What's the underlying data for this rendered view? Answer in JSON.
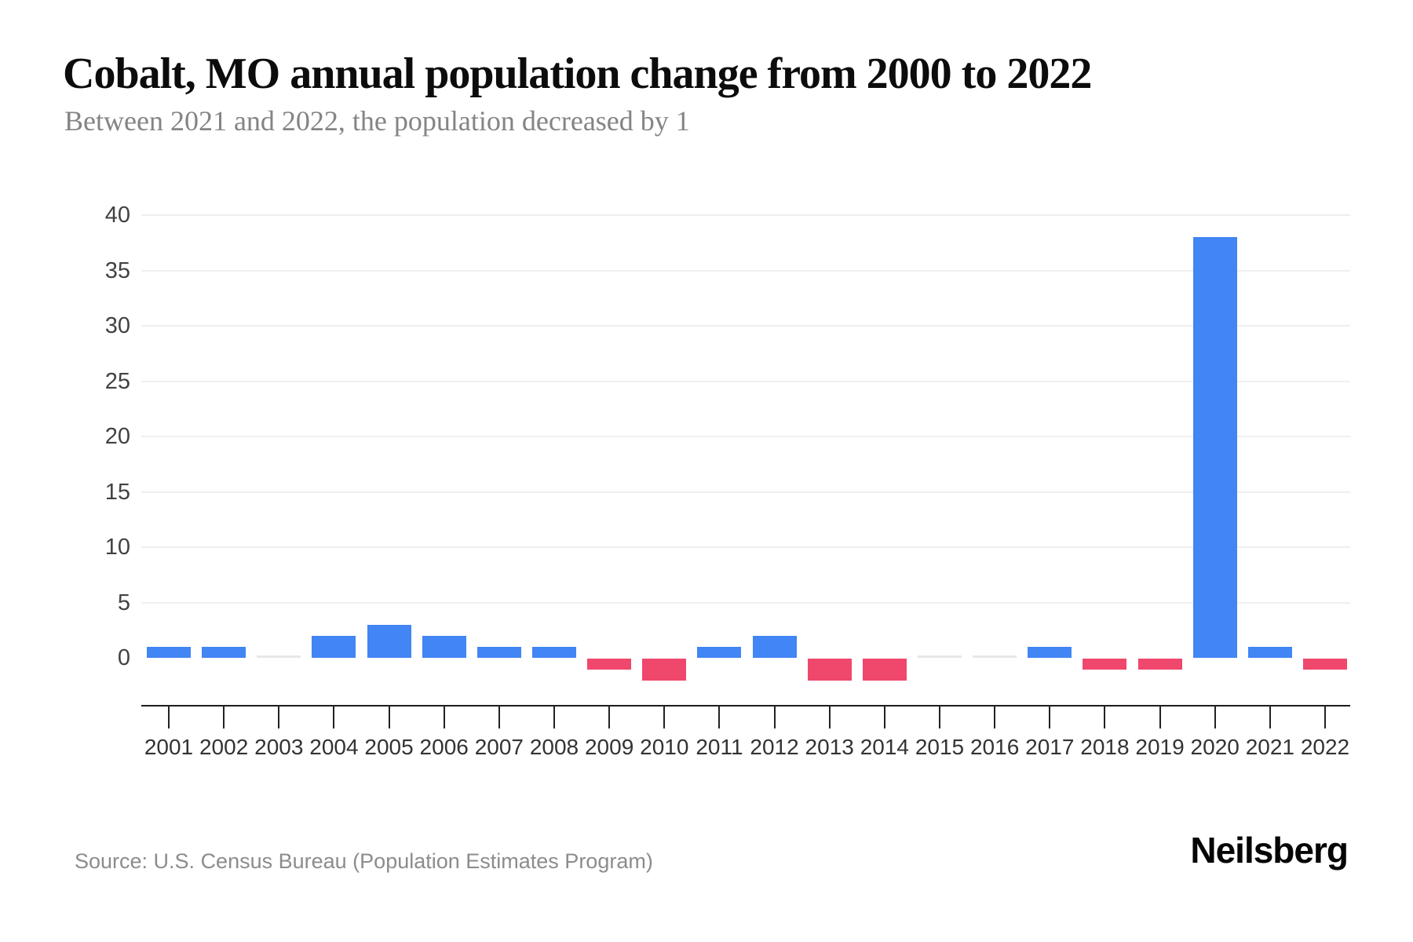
{
  "header": {
    "title": "Cobalt, MO annual population change from 2000 to 2022",
    "subtitle": "Between 2021 and 2022, the population decreased by 1"
  },
  "footer": {
    "source": "Source: U.S. Census Bureau (Population Estimates Program)",
    "logo": "Neilsberg"
  },
  "chart_data": {
    "type": "bar",
    "title": "Cobalt, MO annual population change from 2000 to 2022",
    "subtitle": "Between 2021 and 2022, the population decreased by 1",
    "categories": [
      "2001",
      "2002",
      "2003",
      "2004",
      "2005",
      "2006",
      "2007",
      "2008",
      "2009",
      "2010",
      "2011",
      "2012",
      "2013",
      "2014",
      "2015",
      "2016",
      "2017",
      "2018",
      "2019",
      "2020",
      "2021",
      "2022"
    ],
    "values": [
      1,
      1,
      0,
      2,
      3,
      2,
      1,
      1,
      -1,
      -2,
      1,
      2,
      -2,
      -2,
      0,
      0,
      1,
      -1,
      -1,
      38,
      1,
      -1
    ],
    "xlabel": "",
    "ylabel": "",
    "yticks": [
      0,
      5,
      10,
      15,
      20,
      25,
      30,
      35,
      40
    ],
    "ylim": [
      -4,
      40
    ],
    "grid": "horizontal",
    "legend": "none",
    "colors": {
      "positive": "#4285f4",
      "negative": "#f0476c",
      "zero": "#e7e7e7",
      "gridline": "#efefef",
      "axis": "#1c1c1c"
    }
  }
}
